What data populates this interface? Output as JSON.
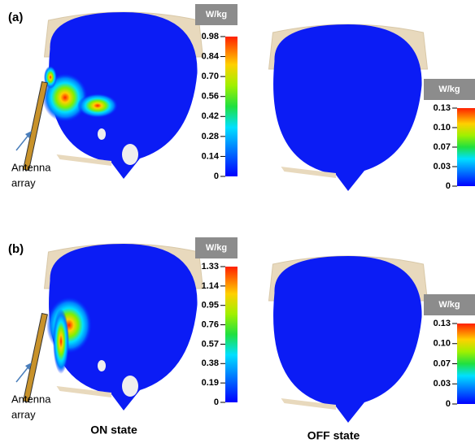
{
  "panels": [
    {
      "label": "(a)",
      "on_colorbar": {
        "unit": "W/kg",
        "ticks": [
          "0.98",
          "0.84",
          "0.70",
          "0.56",
          "0.42",
          "0.28",
          "0.14",
          "0"
        ]
      },
      "off_colorbar": {
        "unit": "W/kg",
        "ticks": [
          "0.13",
          "0.10",
          "0.07",
          "0.03",
          "0"
        ]
      },
      "annotation": [
        "Antenna",
        "array"
      ]
    },
    {
      "label": "(b)",
      "on_colorbar": {
        "unit": "W/kg",
        "ticks": [
          "1.33",
          "1.14",
          "0.95",
          "0.76",
          "0.57",
          "0.38",
          "0.19",
          "0"
        ]
      },
      "off_colorbar": {
        "unit": "W/kg",
        "ticks": [
          "0.13",
          "0.10",
          "0.07",
          "0.03",
          "0"
        ]
      },
      "annotation": [
        "Antenna",
        "array"
      ]
    }
  ],
  "footer": {
    "on": "ON state",
    "off": "OFF state"
  }
}
